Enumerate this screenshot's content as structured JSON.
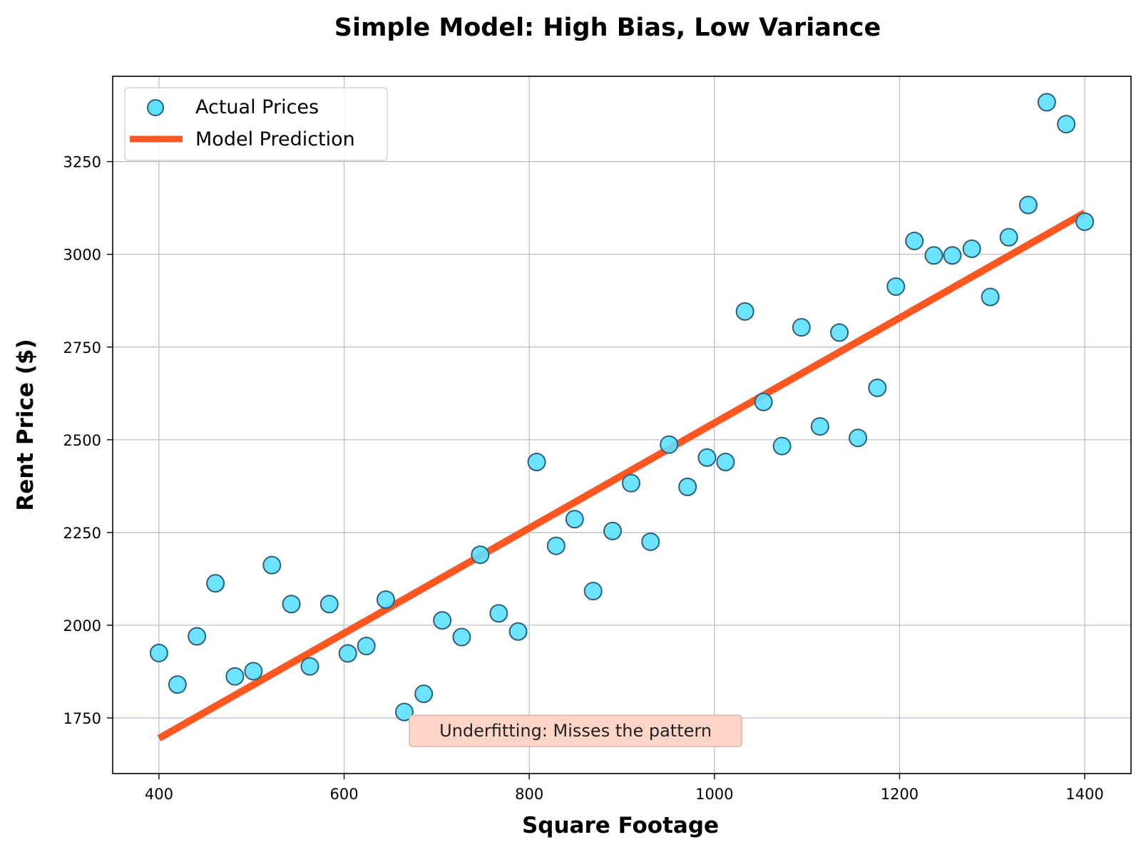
{
  "chart_data": {
    "type": "scatter",
    "title": "Simple Model: High Bias, Low Variance",
    "xlabel": "Square Footage",
    "ylabel": "Rent Price ($)",
    "xlim": [
      350,
      1450
    ],
    "ylim": [
      1600,
      3480
    ],
    "xticks": [
      400,
      600,
      800,
      1000,
      1200,
      1400
    ],
    "yticks": [
      1750,
      2000,
      2250,
      2500,
      2750,
      3000,
      3250
    ],
    "grid": true,
    "legend_position": "top-left",
    "series": [
      {
        "name": "Actual Prices",
        "kind": "scatter",
        "color": "#5ce1ff",
        "edge_color": "#2f5f78",
        "x": [
          400,
          420,
          441,
          461,
          482,
          502,
          522,
          543,
          563,
          584,
          604,
          624,
          645,
          665,
          686,
          706,
          727,
          747,
          767,
          788,
          808,
          829,
          849,
          869,
          890,
          910,
          931,
          951,
          971,
          992,
          1012,
          1033,
          1053,
          1073,
          1094,
          1114,
          1135,
          1155,
          1176,
          1196,
          1216,
          1237,
          1257,
          1278,
          1298,
          1318,
          1339,
          1359,
          1380,
          1400
        ],
        "y": [
          1925,
          1840,
          1970,
          2113,
          1862,
          1876,
          2162,
          2057,
          1889,
          2057,
          1924,
          1944,
          2069,
          1766,
          1815,
          2013,
          1968,
          2190,
          2032,
          1983,
          2440,
          2214,
          2286,
          2092,
          2254,
          2383,
          2225,
          2487,
          2373,
          2452,
          2440,
          2846,
          2602,
          2483,
          2803,
          2536,
          2789,
          2505,
          2640,
          2913,
          3036,
          2997,
          2997,
          3015,
          2885,
          3046,
          3133,
          3410,
          3351,
          3088
        ]
      },
      {
        "name": "Model Prediction",
        "kind": "line",
        "color": "#ff5722",
        "x": [
          400,
          1400
        ],
        "y": [
          1695,
          3112
        ]
      }
    ],
    "annotation": {
      "text": "Underfitting: Misses the pattern",
      "x": 850,
      "y": 1715,
      "box_color": "#ffd5c8"
    }
  }
}
